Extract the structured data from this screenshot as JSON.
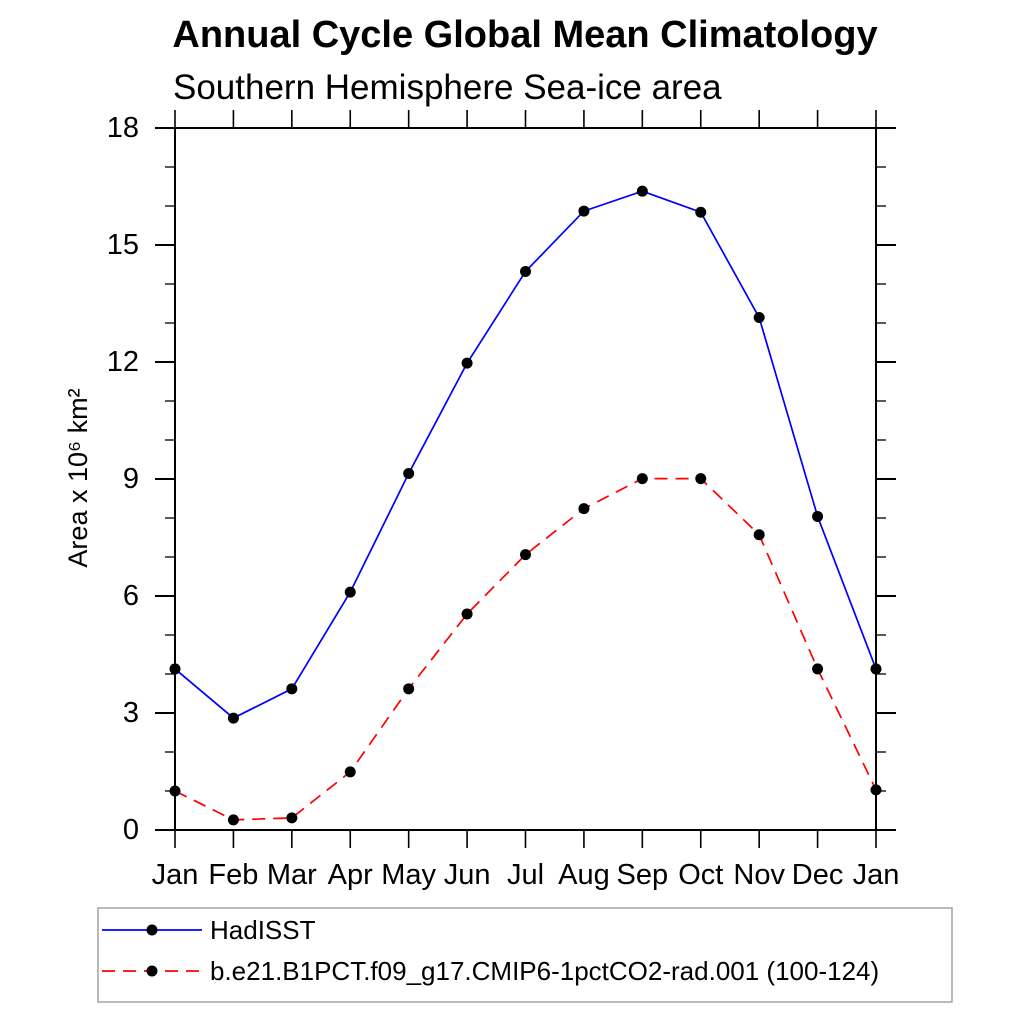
{
  "title": "Annual Cycle Global Mean Climatology",
  "subtitle": "Southern Hemisphere Sea-ice area",
  "chart_data": {
    "type": "line",
    "x": [
      "Jan",
      "Feb",
      "Mar",
      "Apr",
      "May",
      "Jun",
      "Jul",
      "Aug",
      "Sep",
      "Oct",
      "Nov",
      "Dec",
      "Jan"
    ],
    "xlabel": "",
    "ylabel": "Area x 10⁶ km²",
    "ylim": [
      0,
      18
    ],
    "ytick_major": [
      0,
      3,
      6,
      9,
      12,
      15,
      18
    ],
    "ytick_minor_step": 1,
    "grid": false,
    "legend_position": "bottom-box",
    "frame_color": "#000000",
    "legend_border_color": "#a3a3a3",
    "marker_radius": 5.5,
    "series": [
      {
        "name": "HadISST",
        "color": "#0000ff",
        "style": "solid",
        "marker": "circle",
        "marker_color": "#000000",
        "values": [
          4.13,
          2.87,
          3.62,
          6.1,
          9.14,
          11.97,
          14.32,
          15.87,
          16.38,
          15.84,
          13.14,
          8.04,
          4.13
        ]
      },
      {
        "name": "b.e21.B1PCT.f09_g17.CMIP6-1pctCO2-rad.001 (100-124)",
        "color": "#ff0000",
        "style": "dashed",
        "marker": "circle",
        "marker_color": "#000000",
        "values": [
          1.0,
          0.26,
          0.31,
          1.49,
          3.62,
          5.54,
          7.06,
          8.24,
          9.01,
          9.01,
          7.57,
          4.13,
          1.03
        ]
      }
    ]
  }
}
